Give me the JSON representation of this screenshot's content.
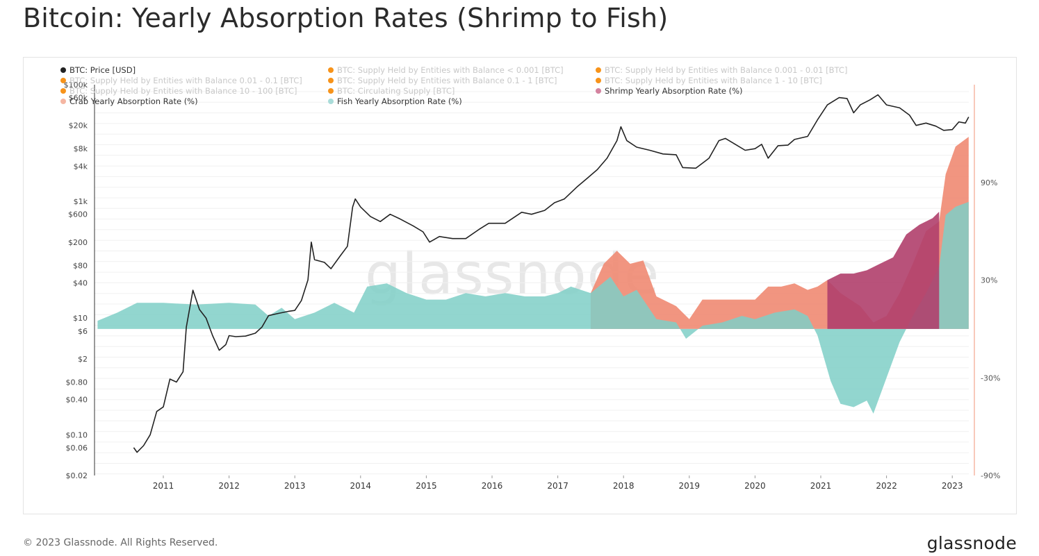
{
  "page": {
    "title": "Bitcoin: Yearly Absorption Rates (Shrimp to Fish)",
    "watermark": "glassnode",
    "copyright": "© 2023 Glassnode. All Rights Reserved.",
    "logo": "glassnode"
  },
  "legend": [
    {
      "label": "BTC: Price [USD]",
      "color": "#222222",
      "active": true
    },
    {
      "label": "BTC: Supply Held by Entities with Balance < 0.001 [BTC]",
      "color": "#f7931a",
      "active": false
    },
    {
      "label": "BTC: Supply Held by Entities with Balance 0.001 - 0.01 [BTC]",
      "color": "#f7931a",
      "active": false
    },
    {
      "label": "BTC: Supply Held by Entities with Balance 0.01 - 0.1 [BTC]",
      "color": "#f7931a",
      "active": false
    },
    {
      "label": "BTC: Supply Held by Entities with Balance 0.1 - 1 [BTC]",
      "color": "#f7931a",
      "active": false
    },
    {
      "label": "BTC: Supply Held by Entities with Balance 1 - 10 [BTC]",
      "color": "#f7931a",
      "active": false
    },
    {
      "label": "BTC: Supply Held by Entities with Balance 10 - 100 [BTC]",
      "color": "#f7931a",
      "active": false
    },
    {
      "label": "BTC: Circulating Supply [BTC]",
      "color": "#f7931a",
      "active": false
    },
    {
      "label": "Shrimp Yearly Absorption Rate (%)",
      "color": "#d4829f",
      "active": true
    },
    {
      "label": "Crab Yearly Absorption Rate (%)",
      "color": "#f5b6a2",
      "active": true
    },
    {
      "label": "Fish Yearly Absorption Rate (%)",
      "color": "#a9dcd9",
      "active": true
    }
  ],
  "chart_data": {
    "type": "line",
    "x_axis": {
      "ticks": [
        "2011",
        "2012",
        "2013",
        "2014",
        "2015",
        "2016",
        "2017",
        "2018",
        "2019",
        "2020",
        "2021",
        "2022",
        "2023"
      ],
      "range": [
        2010.0,
        2023.3
      ]
    },
    "y_left": {
      "scale": "log",
      "tick_labels": [
        "$0.02",
        "$0.06",
        "$0.10",
        "$0.40",
        "$0.80",
        "$2",
        "$6",
        "$10",
        "$40",
        "$80",
        "$200",
        "$600",
        "$1k",
        "$4k",
        "$8k",
        "$20k",
        "$60k",
        "$100k"
      ],
      "tick_values": [
        0.02,
        0.06,
        0.1,
        0.4,
        0.8,
        2,
        6,
        10,
        40,
        80,
        200,
        600,
        1000,
        4000,
        8000,
        20000,
        60000,
        100000
      ]
    },
    "y_right": {
      "tick_labels": [
        "90%",
        "30%",
        "-30%",
        "-90%"
      ],
      "tick_values": [
        90,
        30,
        -30,
        -90
      ],
      "range": [
        -90,
        150
      ]
    },
    "grid": true,
    "series": [
      {
        "name": "BTC: Price [USD]",
        "type": "line",
        "axis": "left",
        "color": "#222222",
        "points": [
          [
            2010.55,
            0.06
          ],
          [
            2010.6,
            0.05
          ],
          [
            2010.7,
            0.065
          ],
          [
            2010.8,
            0.1
          ],
          [
            2010.9,
            0.25
          ],
          [
            2011.0,
            0.3
          ],
          [
            2011.1,
            0.9
          ],
          [
            2011.2,
            0.8
          ],
          [
            2011.3,
            1.2
          ],
          [
            2011.35,
            7
          ],
          [
            2011.45,
            30
          ],
          [
            2011.55,
            14
          ],
          [
            2011.65,
            10
          ],
          [
            2011.75,
            5
          ],
          [
            2011.85,
            2.8
          ],
          [
            2011.95,
            3.5
          ],
          [
            2012.0,
            5
          ],
          [
            2012.1,
            4.8
          ],
          [
            2012.25,
            4.9
          ],
          [
            2012.4,
            5.5
          ],
          [
            2012.5,
            7
          ],
          [
            2012.6,
            11
          ],
          [
            2012.75,
            12
          ],
          [
            2012.9,
            13
          ],
          [
            2013.0,
            13.5
          ],
          [
            2013.1,
            20
          ],
          [
            2013.2,
            45
          ],
          [
            2013.25,
            200
          ],
          [
            2013.3,
            100
          ],
          [
            2013.45,
            90
          ],
          [
            2013.55,
            70
          ],
          [
            2013.7,
            120
          ],
          [
            2013.8,
            170
          ],
          [
            2013.88,
            800
          ],
          [
            2013.92,
            1100
          ],
          [
            2014.0,
            800
          ],
          [
            2014.15,
            550
          ],
          [
            2014.3,
            450
          ],
          [
            2014.45,
            600
          ],
          [
            2014.6,
            500
          ],
          [
            2014.8,
            380
          ],
          [
            2014.95,
            300
          ],
          [
            2015.05,
            200
          ],
          [
            2015.2,
            250
          ],
          [
            2015.4,
            230
          ],
          [
            2015.6,
            230
          ],
          [
            2015.8,
            330
          ],
          [
            2015.95,
            420
          ],
          [
            2016.2,
            420
          ],
          [
            2016.45,
            650
          ],
          [
            2016.6,
            600
          ],
          [
            2016.8,
            700
          ],
          [
            2016.95,
            950
          ],
          [
            2017.1,
            1100
          ],
          [
            2017.3,
            1800
          ],
          [
            2017.45,
            2500
          ],
          [
            2017.6,
            3500
          ],
          [
            2017.75,
            5500
          ],
          [
            2017.9,
            11000
          ],
          [
            2017.96,
            19000
          ],
          [
            2018.05,
            11000
          ],
          [
            2018.2,
            8500
          ],
          [
            2018.4,
            7500
          ],
          [
            2018.6,
            6500
          ],
          [
            2018.8,
            6300
          ],
          [
            2018.9,
            3800
          ],
          [
            2019.1,
            3700
          ],
          [
            2019.3,
            5500
          ],
          [
            2019.45,
            11000
          ],
          [
            2019.55,
            12000
          ],
          [
            2019.7,
            9500
          ],
          [
            2019.85,
            7500
          ],
          [
            2020.0,
            8000
          ],
          [
            2020.1,
            9500
          ],
          [
            2020.2,
            5500
          ],
          [
            2020.35,
            9000
          ],
          [
            2020.5,
            9200
          ],
          [
            2020.6,
            11500
          ],
          [
            2020.8,
            13000
          ],
          [
            2020.95,
            25000
          ],
          [
            2021.1,
            45000
          ],
          [
            2021.28,
            60000
          ],
          [
            2021.4,
            58000
          ],
          [
            2021.5,
            33000
          ],
          [
            2021.6,
            45000
          ],
          [
            2021.75,
            55000
          ],
          [
            2021.87,
            67000
          ],
          [
            2022.0,
            45000
          ],
          [
            2022.2,
            40000
          ],
          [
            2022.35,
            30000
          ],
          [
            2022.45,
            20000
          ],
          [
            2022.6,
            22000
          ],
          [
            2022.75,
            19500
          ],
          [
            2022.87,
            16500
          ],
          [
            2023.0,
            17000
          ],
          [
            2023.1,
            23000
          ],
          [
            2023.2,
            22000
          ],
          [
            2023.25,
            28000
          ]
        ]
      },
      {
        "name": "Fish Yearly Absorption Rate (%)",
        "type": "area",
        "axis": "right",
        "color": "#7fcfc7",
        "points": [
          [
            2010.0,
            5
          ],
          [
            2010.3,
            10
          ],
          [
            2010.6,
            16
          ],
          [
            2011.0,
            16
          ],
          [
            2011.5,
            15
          ],
          [
            2012.0,
            16
          ],
          [
            2012.4,
            15
          ],
          [
            2012.6,
            8
          ],
          [
            2012.8,
            13
          ],
          [
            2013.0,
            6
          ],
          [
            2013.3,
            10
          ],
          [
            2013.6,
            16
          ],
          [
            2013.9,
            10
          ],
          [
            2014.1,
            26
          ],
          [
            2014.4,
            28
          ],
          [
            2014.7,
            22
          ],
          [
            2015.0,
            18
          ],
          [
            2015.3,
            18
          ],
          [
            2015.6,
            22
          ],
          [
            2015.9,
            20
          ],
          [
            2016.2,
            22
          ],
          [
            2016.5,
            20
          ],
          [
            2016.8,
            20
          ],
          [
            2017.0,
            22
          ],
          [
            2017.2,
            26
          ],
          [
            2017.5,
            22
          ],
          [
            2017.8,
            32
          ],
          [
            2018.0,
            20
          ],
          [
            2018.2,
            24
          ],
          [
            2018.5,
            6
          ],
          [
            2018.8,
            4
          ],
          [
            2018.95,
            -6
          ],
          [
            2019.2,
            2
          ],
          [
            2019.5,
            4
          ],
          [
            2019.8,
            8
          ],
          [
            2020.0,
            6
          ],
          [
            2020.3,
            10
          ],
          [
            2020.6,
            12
          ],
          [
            2020.8,
            8
          ],
          [
            2020.95,
            -4
          ],
          [
            2021.15,
            -32
          ],
          [
            2021.3,
            -46
          ],
          [
            2021.5,
            -48
          ],
          [
            2021.7,
            -44
          ],
          [
            2021.8,
            -52
          ],
          [
            2022.0,
            -30
          ],
          [
            2022.2,
            -8
          ],
          [
            2022.4,
            8
          ],
          [
            2022.6,
            22
          ],
          [
            2022.8,
            38
          ],
          [
            2022.9,
            70
          ],
          [
            2023.05,
            75
          ],
          [
            2023.25,
            78
          ]
        ]
      },
      {
        "name": "Crab Yearly Absorption Rate (%)",
        "type": "area",
        "axis": "right",
        "color": "#f08a72",
        "points": [
          [
            2017.5,
            22
          ],
          [
            2017.7,
            40
          ],
          [
            2017.9,
            48
          ],
          [
            2018.1,
            40
          ],
          [
            2018.3,
            42
          ],
          [
            2018.5,
            20
          ],
          [
            2018.8,
            14
          ],
          [
            2019.0,
            6
          ],
          [
            2019.2,
            18
          ],
          [
            2019.5,
            18
          ],
          [
            2019.8,
            18
          ],
          [
            2020.0,
            18
          ],
          [
            2020.2,
            26
          ],
          [
            2020.4,
            26
          ],
          [
            2020.6,
            28
          ],
          [
            2020.8,
            24
          ],
          [
            2020.95,
            26
          ],
          [
            2021.1,
            30
          ],
          [
            2021.3,
            22
          ],
          [
            2021.6,
            14
          ],
          [
            2021.8,
            4
          ],
          [
            2022.0,
            8
          ],
          [
            2022.2,
            22
          ],
          [
            2022.4,
            40
          ],
          [
            2022.6,
            60
          ],
          [
            2022.8,
            66
          ],
          [
            2022.9,
            95
          ],
          [
            2023.05,
            112
          ],
          [
            2023.25,
            118
          ]
        ]
      },
      {
        "name": "Shrimp Yearly Absorption Rate (%)",
        "type": "area",
        "axis": "right",
        "color": "#b03f6c",
        "points": [
          [
            2021.1,
            30
          ],
          [
            2021.3,
            34
          ],
          [
            2021.5,
            34
          ],
          [
            2021.7,
            36
          ],
          [
            2021.9,
            40
          ],
          [
            2022.1,
            44
          ],
          [
            2022.3,
            58
          ],
          [
            2022.5,
            64
          ],
          [
            2022.7,
            68
          ],
          [
            2022.8,
            72
          ]
        ]
      }
    ]
  }
}
